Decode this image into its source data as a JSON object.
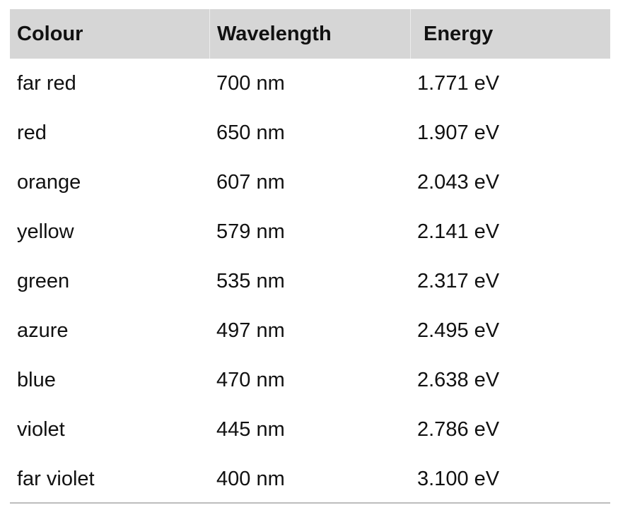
{
  "table": {
    "columns": [
      "Colour",
      "Wavelength",
      "Energy"
    ],
    "rows": [
      [
        "far red",
        "700 nm",
        "1.771 eV"
      ],
      [
        "red",
        "650 nm",
        "1.907 eV"
      ],
      [
        "orange",
        "607 nm",
        "2.043 eV"
      ],
      [
        "yellow",
        "579 nm",
        "2.141 eV"
      ],
      [
        "green",
        "535 nm",
        "2.317 eV"
      ],
      [
        "azure",
        "497 nm",
        "2.495 eV"
      ],
      [
        "blue",
        "470 nm",
        "2.638 eV"
      ],
      [
        "violet",
        "445 nm",
        "2.786 eV"
      ],
      [
        "far violet",
        "400 nm",
        "3.100 eV"
      ]
    ]
  },
  "colors": {
    "header_bg": "#d6d6d6",
    "rule": "#bdbdbd"
  }
}
